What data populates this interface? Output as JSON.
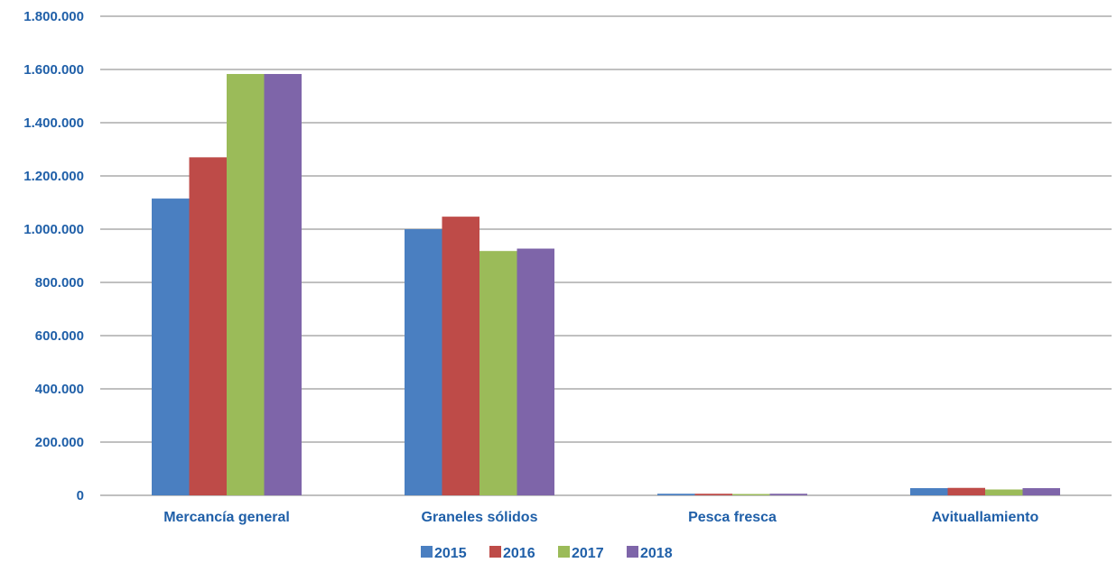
{
  "chart_data": {
    "type": "bar",
    "categories": [
      "Mercancía general",
      "Graneles sólidos",
      "Pesca fresca",
      "Avituallamiento"
    ],
    "series": [
      {
        "name": "2015",
        "color": "#4a7fc1",
        "values": [
          1115000,
          1000000,
          6000,
          27000
        ]
      },
      {
        "name": "2016",
        "color": "#be4b48",
        "values": [
          1270000,
          1047000,
          6000,
          28000
        ]
      },
      {
        "name": "2017",
        "color": "#9bbb59",
        "values": [
          1583000,
          918000,
          5000,
          22000
        ]
      },
      {
        "name": "2018",
        "color": "#7e65a9",
        "values": [
          1583000,
          927000,
          6000,
          27000
        ]
      }
    ],
    "yticks": [
      "0",
      "200.000",
      "400.000",
      "600.000",
      "800.000",
      "1.000.000",
      "1.200.000",
      "1.400.000",
      "1.600.000",
      "1.800.000"
    ],
    "ylim": [
      0,
      1800000
    ],
    "grid": true,
    "legend_position": "bottom",
    "axis_text_color": "#1f5fa8",
    "gridline_color": "#808080"
  }
}
